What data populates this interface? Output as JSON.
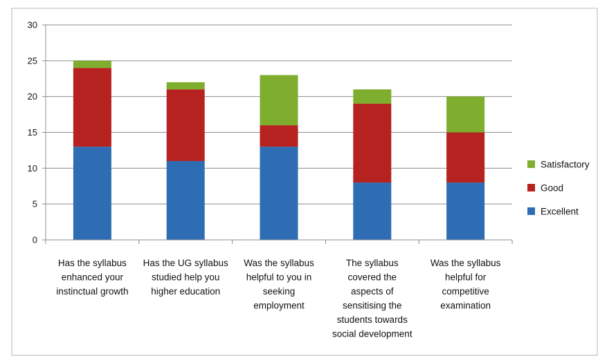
{
  "chart_data": {
    "type": "bar",
    "stacked": true,
    "categories": [
      [
        "Has the syllabus",
        "enhanced your",
        "instinctual growth"
      ],
      [
        "Has the UG syllabus",
        "studied help you",
        "higher education"
      ],
      [
        "Was the syllabus",
        "helpful to you in",
        "seeking",
        "employment"
      ],
      [
        "The syllabus",
        "covered the",
        "aspects of",
        "sensitising the",
        "students towards",
        "social development"
      ],
      [
        "Was the syllabus",
        "helpful for",
        "competitive",
        "examination"
      ]
    ],
    "series": [
      {
        "name": "Excellent",
        "color": "#2e6db3",
        "values": [
          13,
          11,
          13,
          8,
          8
        ]
      },
      {
        "name": "Good",
        "color": "#b5221f",
        "values": [
          11,
          10,
          3,
          11,
          7
        ]
      },
      {
        "name": "Satisfactory",
        "color": "#7fae2f",
        "values": [
          1,
          1,
          7,
          2,
          5
        ]
      }
    ],
    "yticks": [
      0,
      5,
      10,
      15,
      20,
      25,
      30
    ],
    "ylim": [
      0,
      30
    ],
    "grid": true,
    "legend_position": "right"
  }
}
